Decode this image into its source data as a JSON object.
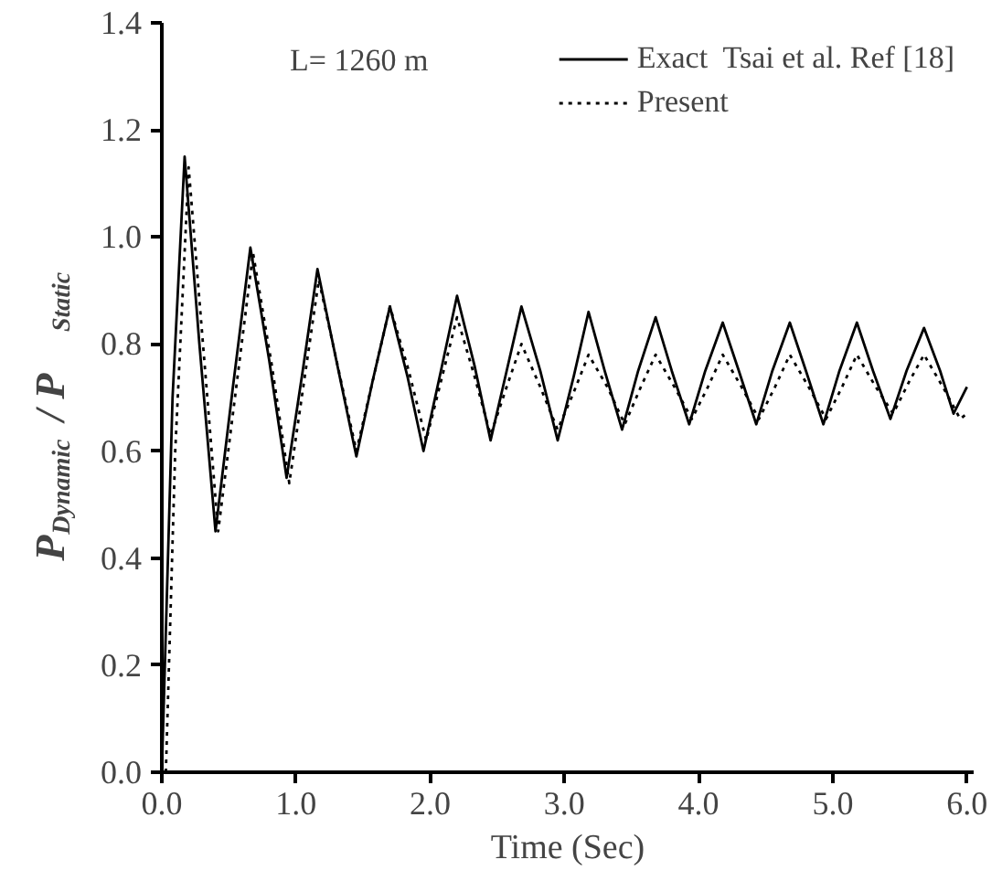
{
  "chart_data": {
    "type": "line",
    "xlabel": "Time (Sec)",
    "ylabel": "P$_{Dynamic}$ / P$_{Static}$",
    "annotations": [
      "L= 1260 m"
    ],
    "xlim": [
      0,
      6.05
    ],
    "ylim": [
      0,
      1.4
    ],
    "xticks": [
      {
        "value": 0,
        "label": "0.0"
      },
      {
        "value": 1,
        "label": "1.0"
      },
      {
        "value": 2,
        "label": "2.0"
      },
      {
        "value": 3,
        "label": "3.0"
      },
      {
        "value": 4,
        "label": "4.0"
      },
      {
        "value": 5,
        "label": "5.0"
      },
      {
        "value": 6,
        "label": "6.0"
      }
    ],
    "yticks": [
      {
        "value": 0,
        "label": "0.0"
      },
      0.2,
      0.4,
      0.6,
      0.8,
      {
        "value": 1,
        "label": "1.0"
      },
      1.2,
      1.4
    ],
    "grid": false,
    "legend": "top right",
    "marker": "none",
    "series": [
      {
        "name": "Exact  Tsai et al. Ref [18]",
        "color": "#000000",
        "line_style": "solid",
        "x": [
          0,
          0.08,
          0.17,
          0.28,
          0.4,
          0.53,
          0.66,
          0.8,
          0.93,
          1.05,
          1.16,
          1.3,
          1.45,
          1.57,
          1.7,
          1.83,
          1.95,
          2.08,
          2.2,
          2.33,
          2.45,
          2.57,
          2.68,
          2.82,
          2.95,
          3.07,
          3.18,
          3.3,
          3.43,
          3.55,
          3.68,
          3.8,
          3.93,
          4.05,
          4.18,
          4.3,
          4.43,
          4.55,
          4.68,
          4.8,
          4.93,
          5.05,
          5.18,
          5.3,
          5.43,
          5.55,
          5.68,
          5.8,
          5.9,
          6.0
        ],
        "values": [
          0,
          0.7,
          1.15,
          0.8,
          0.45,
          0.72,
          0.98,
          0.77,
          0.55,
          0.75,
          0.94,
          0.77,
          0.59,
          0.73,
          0.87,
          0.74,
          0.6,
          0.75,
          0.89,
          0.76,
          0.62,
          0.75,
          0.87,
          0.75,
          0.62,
          0.74,
          0.86,
          0.75,
          0.64,
          0.75,
          0.85,
          0.75,
          0.65,
          0.75,
          0.84,
          0.75,
          0.65,
          0.75,
          0.84,
          0.75,
          0.65,
          0.75,
          0.84,
          0.75,
          0.66,
          0.75,
          0.83,
          0.75,
          0.67,
          0.72
        ]
      },
      {
        "name": "Present",
        "color": "#000000",
        "line_style": "dotted",
        "x": [
          0.03,
          0.1,
          0.2,
          0.31,
          0.42,
          0.55,
          0.68,
          0.82,
          0.95,
          1.06,
          1.17,
          1.31,
          1.45,
          1.58,
          1.7,
          1.84,
          1.97,
          2.09,
          2.2,
          2.33,
          2.45,
          2.57,
          2.68,
          2.82,
          2.95,
          3.07,
          3.18,
          3.32,
          3.45,
          3.57,
          3.68,
          3.82,
          3.95,
          4.07,
          4.18,
          4.32,
          4.45,
          4.57,
          4.68,
          4.82,
          4.95,
          5.07,
          5.18,
          5.32,
          5.45,
          5.57,
          5.68,
          5.82,
          5.95,
          6.0
        ],
        "values": [
          0,
          0.6,
          1.13,
          0.79,
          0.45,
          0.71,
          0.97,
          0.76,
          0.54,
          0.73,
          0.92,
          0.76,
          0.6,
          0.74,
          0.87,
          0.75,
          0.62,
          0.74,
          0.85,
          0.74,
          0.63,
          0.72,
          0.8,
          0.72,
          0.64,
          0.71,
          0.78,
          0.72,
          0.65,
          0.72,
          0.78,
          0.72,
          0.66,
          0.72,
          0.78,
          0.72,
          0.66,
          0.72,
          0.78,
          0.72,
          0.66,
          0.72,
          0.78,
          0.72,
          0.67,
          0.73,
          0.78,
          0.72,
          0.66,
          0.67
        ]
      }
    ]
  }
}
